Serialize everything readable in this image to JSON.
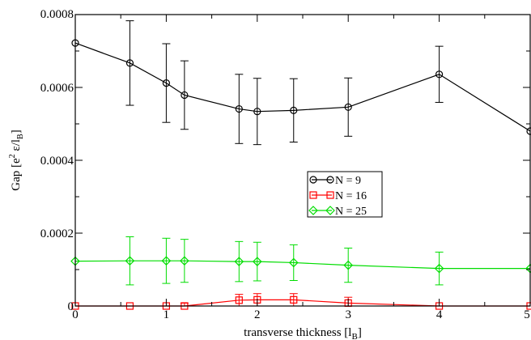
{
  "chart_data": {
    "type": "line",
    "xlabel": "transverse thickness [l_B]",
    "ylabel": "Gap [e^2 ε/l_B]",
    "xlim": [
      0,
      5
    ],
    "ylim": [
      0,
      0.0008
    ],
    "x_ticks": [
      "0",
      "1",
      "2",
      "3",
      "4",
      "5"
    ],
    "y_ticks": [
      "0",
      "0.0002",
      "0.0004",
      "0.0006",
      "0.0008"
    ],
    "legend_position": "center-right",
    "grid": false,
    "series": [
      {
        "name": "N = 9",
        "color": "#000000",
        "marker": "circle",
        "x": [
          0,
          0.6,
          1,
          1.2,
          1.8,
          2,
          2.4,
          3,
          4,
          5
        ],
        "y": [
          0.000722,
          0.000667,
          0.000612,
          0.000579,
          0.000541,
          0.000534,
          0.000537,
          0.000546,
          0.000636,
          0.00048
        ],
        "err": [
          0,
          0.000116,
          0.000108,
          9.4e-05,
          9.5e-05,
          9.1e-05,
          8.7e-05,
          8e-05,
          7.7e-05,
          0
        ]
      },
      {
        "name": "N = 16",
        "color": "#ff0000",
        "marker": "square",
        "x": [
          0,
          0.6,
          1,
          1.2,
          1.8,
          2,
          2.4,
          3,
          4,
          5
        ],
        "y": [
          0.0,
          0.0,
          0.0,
          0.0,
          1.6e-05,
          1.7e-05,
          1.7e-05,
          8e-06,
          0.0,
          0.0
        ],
        "err": [
          0,
          0,
          0,
          8e-06,
          1.6e-05,
          1.7e-05,
          1.7e-05,
          1.6e-05,
          0,
          0
        ]
      },
      {
        "name": "N = 25",
        "color": "#00dd00",
        "marker": "diamond",
        "x": [
          0,
          0.6,
          1,
          1.2,
          1.8,
          2,
          2.4,
          3,
          4,
          5
        ],
        "y": [
          0.000123,
          0.000124,
          0.000124,
          0.000124,
          0.000122,
          0.000122,
          0.000119,
          0.000112,
          0.000103,
          0.000103
        ],
        "err": [
          0,
          6.6e-05,
          6.2e-05,
          5.9e-05,
          5.5e-05,
          5.3e-05,
          4.9e-05,
          4.7e-05,
          4.5e-05,
          0
        ]
      }
    ]
  }
}
